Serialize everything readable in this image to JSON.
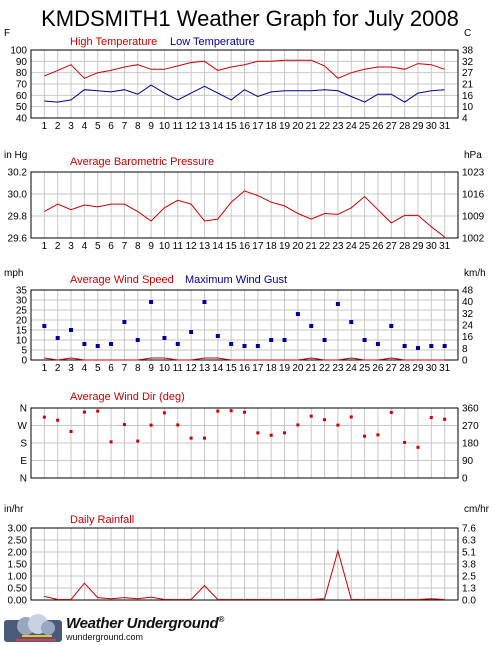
{
  "title": "KMDSMITH1 Weather Graph for July 2008",
  "branding": {
    "name": "Weather Underground",
    "mark": "®",
    "url": "wunderground.com"
  },
  "colors": {
    "red": "#cc0000",
    "blue": "#000099",
    "grid": "#c8c8c8",
    "frame": "#000000"
  },
  "days": [
    1,
    2,
    3,
    4,
    5,
    6,
    7,
    8,
    9,
    10,
    11,
    12,
    13,
    14,
    15,
    16,
    17,
    18,
    19,
    20,
    21,
    22,
    23,
    24,
    25,
    26,
    27,
    28,
    29,
    30,
    31
  ],
  "chart_data": [
    {
      "type": "line",
      "left_unit": "F",
      "right_unit": "C",
      "ylim": [
        40,
        100
      ],
      "left_ticks": [
        "100",
        "90",
        "80",
        "70",
        "60",
        "50",
        "40"
      ],
      "right_ticks": [
        "38",
        "32",
        "27",
        "21",
        "16",
        "10",
        "4"
      ],
      "series": [
        {
          "name": "High Temperature",
          "color": "#cc0000",
          "values": [
            77,
            82,
            87,
            75,
            80,
            82,
            85,
            87,
            83,
            83,
            86,
            89,
            90,
            82,
            85,
            87,
            90,
            90,
            91,
            91,
            91,
            86,
            75,
            80,
            83,
            85,
            85,
            83,
            88,
            87,
            83
          ]
        },
        {
          "name": "Low Temperature",
          "color": "#000099",
          "values": [
            55,
            54,
            56,
            65,
            64,
            63,
            65,
            61,
            69,
            62,
            56,
            62,
            68,
            62,
            56,
            65,
            59,
            63,
            64,
            64,
            64,
            65,
            64,
            59,
            54,
            61,
            61,
            54,
            62,
            64,
            65
          ]
        }
      ]
    },
    {
      "type": "line",
      "left_unit": "in Hg",
      "right_unit": "hPa",
      "ylim": [
        29.6,
        30.3
      ],
      "left_ticks": [
        "30.2",
        "30.0",
        "29.8",
        "29.6"
      ],
      "right_ticks": [
        "1023",
        "1016",
        "1009",
        "1002"
      ],
      "series": [
        {
          "name": "Average Barometric Pressure",
          "color": "#cc0000",
          "values": [
            29.88,
            29.96,
            29.9,
            29.95,
            29.93,
            29.96,
            29.96,
            29.88,
            29.78,
            29.92,
            30.0,
            29.96,
            29.78,
            29.8,
            29.98,
            30.1,
            30.05,
            29.98,
            29.94,
            29.86,
            29.8,
            29.86,
            29.85,
            29.92,
            30.04,
            29.9,
            29.76,
            29.84,
            29.84,
            29.72,
            29.61
          ]
        }
      ]
    },
    {
      "type": "line",
      "left_unit": "mph",
      "right_unit": "km/h",
      "ylim": [
        0,
        35
      ],
      "left_ticks": [
        "35",
        "30",
        "25",
        "20",
        "15",
        "10",
        "5",
        "0"
      ],
      "right_ticks": [
        "48",
        "40",
        "32",
        "24",
        "16",
        "8",
        "0"
      ],
      "series": [
        {
          "name": "Average Wind Speed",
          "color": "#cc0000",
          "values": [
            1,
            0,
            1,
            0,
            0,
            0,
            0,
            0,
            1,
            1,
            0,
            0,
            1,
            1,
            0,
            0,
            0,
            0,
            0,
            0,
            1,
            0,
            0,
            1,
            0,
            0,
            1,
            0,
            0,
            0,
            0
          ]
        },
        {
          "name": "Maximum Wind Gust",
          "color": "#000099",
          "values": [
            17,
            11,
            15,
            8,
            7,
            8,
            19,
            10,
            29,
            11,
            8,
            14,
            29,
            12,
            8,
            7,
            7,
            10,
            10,
            23,
            17,
            10,
            28,
            19,
            10,
            8,
            17,
            7,
            6,
            7,
            7
          ]
        }
      ]
    },
    {
      "type": "scatter",
      "left_unit": "",
      "right_unit": "",
      "ylim": [
        0,
        360
      ],
      "left_ticks": [
        "N",
        "W",
        "S",
        "E",
        "N"
      ],
      "right_ticks": [
        "360",
        "270",
        "180",
        "90",
        "0"
      ],
      "series": [
        {
          "name": "Average Wind Dir (deg)",
          "color": "#cc0000",
          "values": [
            313,
            297,
            239,
            339,
            344,
            186,
            275,
            190,
            272,
            335,
            273,
            205,
            205,
            344,
            346,
            338,
            232,
            220,
            232,
            273,
            318,
            300,
            272,
            314,
            215,
            222,
            337,
            183,
            158,
            311,
            302
          ]
        }
      ]
    },
    {
      "type": "line",
      "left_unit": "in/hr",
      "right_unit": "cm/hr",
      "ylim": [
        0,
        3.0
      ],
      "left_ticks": [
        "3.00",
        "2.50",
        "2.00",
        "1.50",
        "1.00",
        "0.50",
        "0.00"
      ],
      "right_ticks": [
        "7.6",
        "6.3",
        "5.1",
        "3.8",
        "2.5",
        "1.3",
        "0.0"
      ],
      "series": [
        {
          "name": "Daily Rainfall",
          "color": "#cc0000",
          "values": [
            0.15,
            0.02,
            0.02,
            0.7,
            0.1,
            0.05,
            0.1,
            0.05,
            0.12,
            0.02,
            0.02,
            0.02,
            0.6,
            0.02,
            0.02,
            0.02,
            0.02,
            0.02,
            0.02,
            0.02,
            0.02,
            0.05,
            2.05,
            0.02,
            0.02,
            0.02,
            0.02,
            0.02,
            0.02,
            0.05,
            0.02
          ]
        }
      ]
    }
  ]
}
